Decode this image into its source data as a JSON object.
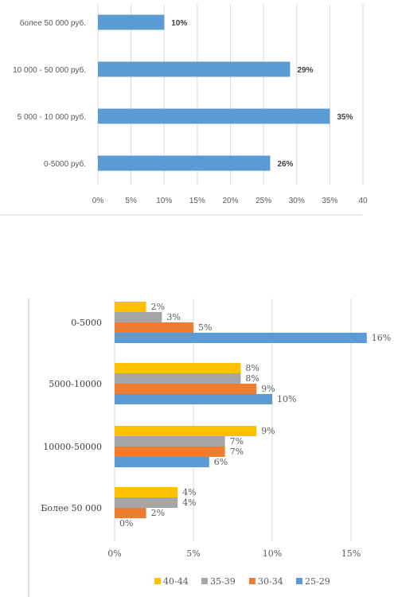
{
  "chart_data": [
    {
      "type": "bar",
      "orientation": "horizontal",
      "categories": [
        "более 50 000 руб.",
        "10 000 - 50 000 руб.",
        "5 000 - 10 000 руб.",
        "0-5000 руб."
      ],
      "values": [
        10,
        29,
        35,
        26
      ],
      "value_labels": [
        "10%",
        "29%",
        "35%",
        "26%"
      ],
      "xlim": [
        0,
        40
      ],
      "x_ticks": [
        "0%",
        "5%",
        "10%",
        "15%",
        "20%",
        "25%",
        "30%",
        "35%",
        "40"
      ],
      "grid": true,
      "color": "#5b9bd5"
    },
    {
      "type": "bar",
      "orientation": "horizontal",
      "categories": [
        "0-5000",
        "5000-10000",
        "10000-50000",
        "Более 50 000"
      ],
      "series": [
        {
          "name": "40-44",
          "color": "#ffc000",
          "values": [
            2,
            8,
            9,
            4
          ],
          "labels": [
            "2%",
            "8%",
            "9%",
            "4%"
          ]
        },
        {
          "name": "35-39",
          "color": "#a5a5a5",
          "values": [
            3,
            8,
            7,
            4
          ],
          "labels": [
            "3%",
            "8%",
            "7%",
            "4%"
          ]
        },
        {
          "name": "30-34",
          "color": "#ed7d31",
          "values": [
            5,
            9,
            7,
            2
          ],
          "labels": [
            "5%",
            "9%",
            "7%",
            "2%"
          ]
        },
        {
          "name": "25-29",
          "color": "#5b9bd5",
          "values": [
            16,
            10,
            6,
            0
          ],
          "labels": [
            "16%",
            "10%",
            "6%",
            "0%"
          ]
        }
      ],
      "xlim": [
        0,
        15.5
      ],
      "x_ticks": [
        "0%",
        "5%",
        "10%",
        "15%"
      ],
      "grid": true,
      "legend_position": "bottom"
    }
  ]
}
